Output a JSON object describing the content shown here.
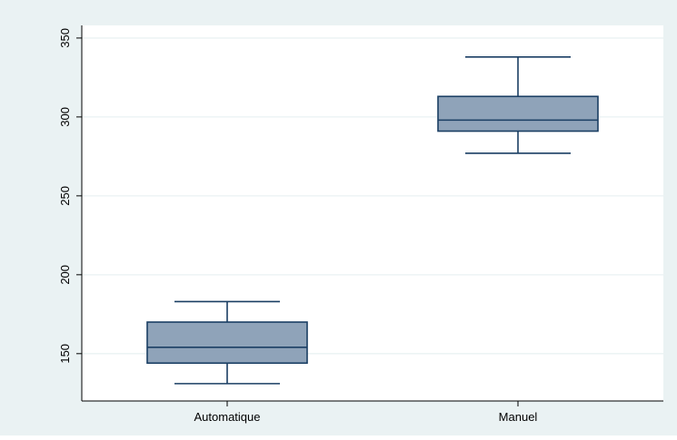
{
  "chart_data": {
    "type": "box",
    "title": "",
    "xlabel": "",
    "ylabel": "",
    "categories": [
      "Automatique",
      "Manuel"
    ],
    "boxes": [
      {
        "name": "Automatique",
        "whisker_low": 131,
        "q1": 144,
        "median": 154,
        "q3": 170,
        "whisker_high": 183
      },
      {
        "name": "Manuel",
        "whisker_low": 277,
        "q1": 291,
        "median": 298,
        "q3": 313,
        "whisker_high": 338
      }
    ],
    "yticks": [
      150,
      200,
      250,
      300,
      350
    ],
    "ylim": [
      120,
      358
    ],
    "grid": true,
    "legend": "none",
    "colors": {
      "outer_background": "#eaf2f3",
      "plot_background": "#ffffff",
      "box_fill": "#8fa3b9",
      "box_stroke": "#1a3e63",
      "gridline": "#eaf2f3",
      "axis": "#000000"
    }
  }
}
